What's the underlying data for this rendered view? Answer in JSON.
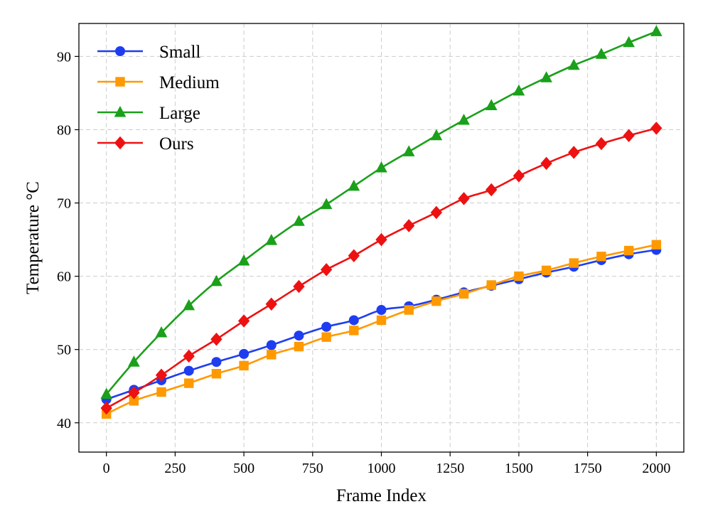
{
  "chart_data": {
    "type": "line",
    "title": "",
    "xlabel": "Frame Index",
    "ylabel": "Temperature °C",
    "xlim": [
      -100,
      2100
    ],
    "ylim": [
      36,
      94.5
    ],
    "xticks": [
      0,
      250,
      500,
      750,
      1000,
      1250,
      1500,
      1750,
      2000
    ],
    "yticks": [
      40,
      50,
      60,
      70,
      80,
      90
    ],
    "grid": true,
    "legend_position": "top-left",
    "x": [
      0,
      100,
      200,
      300,
      400,
      500,
      600,
      700,
      800,
      900,
      1000,
      1100,
      1200,
      1300,
      1400,
      1500,
      1600,
      1700,
      1800,
      1900,
      2000
    ],
    "series": [
      {
        "name": "Small",
        "color": "#1f3df0",
        "marker": "circle",
        "values": [
          43.2,
          44.5,
          45.8,
          47.1,
          48.3,
          49.4,
          50.6,
          51.9,
          53.1,
          54.0,
          55.4,
          55.9,
          56.8,
          57.8,
          58.7,
          59.6,
          60.5,
          61.3,
          62.2,
          63.0,
          63.6
        ]
      },
      {
        "name": "Medium",
        "color": "#ff9900",
        "marker": "square",
        "values": [
          41.2,
          43.0,
          44.2,
          45.4,
          46.7,
          47.8,
          49.3,
          50.4,
          51.7,
          52.6,
          54.0,
          55.4,
          56.6,
          57.6,
          58.8,
          60.0,
          60.8,
          61.8,
          62.7,
          63.5,
          64.3
        ]
      },
      {
        "name": "Large",
        "color": "#1aa01a",
        "marker": "triangle",
        "values": [
          43.9,
          48.3,
          52.3,
          56.0,
          59.3,
          62.1,
          64.9,
          67.5,
          69.8,
          72.3,
          74.8,
          77.0,
          79.2,
          81.3,
          83.3,
          85.3,
          87.1,
          88.8,
          90.3,
          91.9,
          93.4
        ]
      },
      {
        "name": "Ours",
        "color": "#ee1111",
        "marker": "diamond",
        "values": [
          42.0,
          44.1,
          46.5,
          49.1,
          51.4,
          53.9,
          56.2,
          58.6,
          60.9,
          62.8,
          65.0,
          66.9,
          68.7,
          70.6,
          71.8,
          73.7,
          75.4,
          76.9,
          78.1,
          79.2,
          80.2
        ]
      }
    ]
  }
}
